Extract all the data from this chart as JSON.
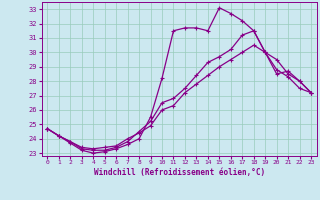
{
  "bg_color": "#cce8f0",
  "line_color": "#880088",
  "grid_color": "#99ccbb",
  "xlabel": "Windchill (Refroidissement éolien,°C)",
  "xlim": [
    -0.5,
    23.5
  ],
  "ylim": [
    22.8,
    33.5
  ],
  "yticks": [
    23,
    24,
    25,
    26,
    27,
    28,
    29,
    30,
    31,
    32,
    33
  ],
  "xticks": [
    0,
    1,
    2,
    3,
    4,
    5,
    6,
    7,
    8,
    9,
    10,
    11,
    12,
    13,
    14,
    15,
    16,
    17,
    18,
    19,
    20,
    21,
    22,
    23
  ],
  "curve1_x": [
    0,
    1,
    2,
    3,
    4,
    5,
    6,
    7,
    8,
    9,
    10,
    11,
    12,
    13,
    14,
    15,
    16,
    17,
    18,
    19,
    20,
    21,
    22,
    23
  ],
  "curve1_y": [
    24.7,
    24.2,
    23.8,
    23.4,
    23.3,
    23.4,
    23.5,
    24.0,
    24.4,
    24.9,
    26.0,
    26.3,
    27.2,
    27.8,
    28.4,
    29.0,
    29.5,
    30.0,
    30.5,
    30.0,
    29.5,
    28.5,
    28.0,
    27.2
  ],
  "curve2_x": [
    0,
    1,
    2,
    3,
    4,
    5,
    6,
    7,
    8,
    9,
    10,
    11,
    12,
    13,
    14,
    15,
    16,
    17,
    18,
    19,
    20,
    21,
    22,
    23
  ],
  "curve2_y": [
    24.7,
    24.2,
    23.7,
    23.2,
    23.0,
    23.1,
    23.3,
    23.6,
    24.0,
    25.5,
    28.2,
    31.5,
    31.7,
    31.7,
    31.5,
    33.1,
    32.7,
    32.2,
    31.5,
    30.0,
    28.5,
    28.7,
    28.0,
    27.2
  ],
  "curve3_x": [
    0,
    1,
    2,
    3,
    4,
    5,
    6,
    7,
    8,
    9,
    10,
    11,
    12,
    13,
    14,
    15,
    16,
    17,
    18,
    19,
    20,
    21,
    22,
    23
  ],
  "curve3_y": [
    24.7,
    24.2,
    23.8,
    23.3,
    23.2,
    23.2,
    23.4,
    23.8,
    24.5,
    25.2,
    26.5,
    26.8,
    27.5,
    28.4,
    29.3,
    29.7,
    30.2,
    31.2,
    31.5,
    30.0,
    28.8,
    28.3,
    27.5,
    27.2
  ],
  "marker": "+",
  "markersize": 3.5,
  "linewidth": 0.9
}
